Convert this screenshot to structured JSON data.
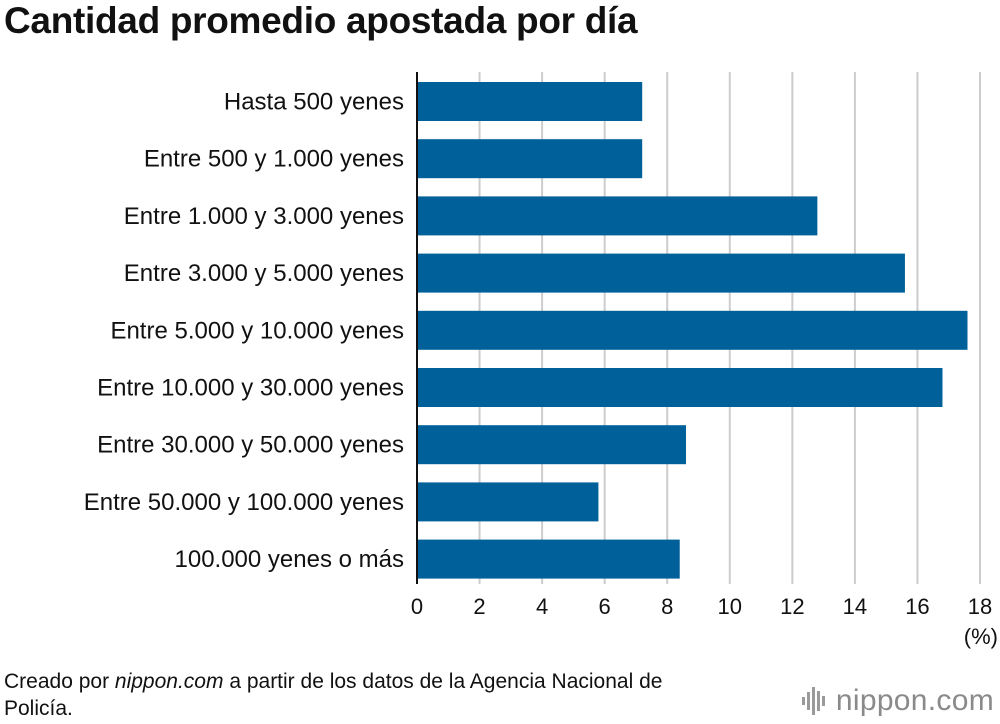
{
  "chart_data": {
    "type": "bar",
    "orientation": "horizontal",
    "title": "Cantidad promedio apostada por día",
    "categories": [
      "Hasta 500 yenes",
      "Entre 500 y 1.000 yenes",
      "Entre 1.000 y 3.000 yenes",
      "Entre 3.000 y 5.000 yenes",
      "Entre 5.000 y 10.000 yenes",
      "Entre 10.000 y 30.000 yenes",
      "Entre 30.000 y 50.000 yenes",
      "Entre 50.000 y 100.000 yenes",
      "100.000 yenes o más"
    ],
    "values": [
      7.2,
      7.2,
      12.8,
      15.6,
      17.6,
      16.8,
      8.6,
      5.8,
      8.4
    ],
    "xlim": [
      0,
      18
    ],
    "xticks": [
      0,
      2,
      4,
      6,
      8,
      10,
      12,
      14,
      16,
      18
    ],
    "xunit": "(%)",
    "grid": true,
    "bar_color": "#00609a",
    "grid_color": "#cccccc"
  },
  "footer": {
    "credit_prefix": "Creado por ",
    "credit_source": "nippon.com",
    "credit_suffix": " a partir de los datos de la Agencia Nacional de Policía.",
    "brand_name": "nippon",
    "brand_domain": "com"
  }
}
